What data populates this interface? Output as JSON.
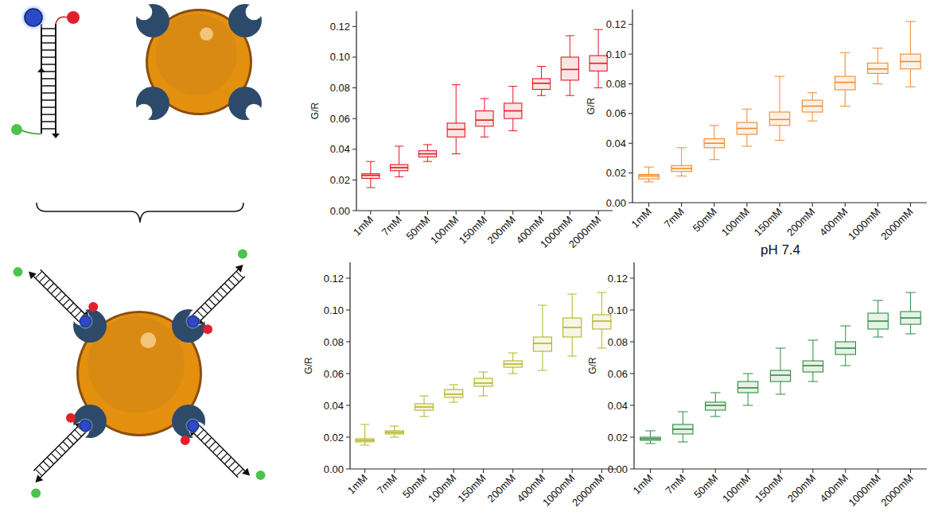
{
  "chart_data": [
    {
      "type": "box",
      "ylabel": "G/R",
      "color": "#e3171f",
      "grid": false,
      "categories": [
        "1mM",
        "7mM",
        "50mM",
        "100mM",
        "150mM",
        "200mM",
        "400mM",
        "1000mM",
        "2000mM"
      ],
      "min": [
        0.015,
        0.022,
        0.032,
        0.037,
        0.048,
        0.052,
        0.075,
        0.075,
        0.08
      ],
      "q1": [
        0.021,
        0.026,
        0.035,
        0.048,
        0.055,
        0.06,
        0.079,
        0.085,
        0.091
      ],
      "median": [
        0.023,
        0.028,
        0.037,
        0.053,
        0.059,
        0.065,
        0.083,
        0.092,
        0.096
      ],
      "q3": [
        0.024,
        0.03,
        0.039,
        0.057,
        0.065,
        0.07,
        0.086,
        0.1,
        0.101
      ],
      "max": [
        0.032,
        0.042,
        0.043,
        0.082,
        0.073,
        0.081,
        0.094,
        0.114,
        0.118
      ],
      "ylim": [
        0,
        0.13
      ],
      "yticks": [
        {
          "value": 0,
          "label": "0.00"
        },
        {
          "value": 0.02,
          "label": "0.02"
        },
        {
          "value": 0.04,
          "label": "0.04"
        },
        {
          "value": 0.06,
          "label": "0.06"
        },
        {
          "value": 0.08,
          "label": "0.08"
        },
        {
          "value": 0.1,
          "label": "0.10"
        },
        {
          "value": 0.12,
          "label": "0.12"
        }
      ]
    },
    {
      "type": "box",
      "ylabel": "G/R",
      "color": "#f08a2c",
      "grid": false,
      "categories": [
        "1mM",
        "7mM",
        "50mM",
        "100mM",
        "150mM",
        "200mM",
        "400mM",
        "1000mM",
        "2000mM"
      ],
      "min": [
        0.014,
        0.018,
        0.029,
        0.038,
        0.042,
        0.055,
        0.065,
        0.08,
        0.078
      ],
      "q1": [
        0.016,
        0.021,
        0.037,
        0.046,
        0.052,
        0.061,
        0.076,
        0.087,
        0.09
      ],
      "median": [
        0.018,
        0.023,
        0.04,
        0.05,
        0.056,
        0.065,
        0.081,
        0.09,
        0.095
      ],
      "q3": [
        0.019,
        0.025,
        0.043,
        0.054,
        0.061,
        0.069,
        0.085,
        0.094,
        0.1
      ],
      "max": [
        0.024,
        0.037,
        0.052,
        0.063,
        0.085,
        0.074,
        0.101,
        0.104,
        0.122
      ],
      "ylim": [
        0,
        0.13
      ],
      "yticks": [
        {
          "value": 0,
          "label": "0.00"
        },
        {
          "value": 0.02,
          "label": "0.02"
        },
        {
          "value": 0.04,
          "label": "0.04"
        },
        {
          "value": 0.06,
          "label": "0.06"
        },
        {
          "value": 0.08,
          "label": "0.08"
        },
        {
          "value": 0.1,
          "label": "0.10"
        },
        {
          "value": 0.12,
          "label": "0.12"
        }
      ]
    },
    {
      "type": "box",
      "ylabel": "G/R",
      "color": "#b3b520",
      "grid": false,
      "categories": [
        "1mM",
        "7mM",
        "50mM",
        "100mM",
        "150mM",
        "200mM",
        "400mM",
        "1000mM",
        "2000mM"
      ],
      "min": [
        0.015,
        0.02,
        0.033,
        0.042,
        0.046,
        0.06,
        0.062,
        0.071,
        0.076
      ],
      "q1": [
        0.017,
        0.022,
        0.037,
        0.045,
        0.052,
        0.064,
        0.074,
        0.083,
        0.088
      ],
      "median": [
        0.018,
        0.023,
        0.039,
        0.047,
        0.054,
        0.066,
        0.079,
        0.089,
        0.093
      ],
      "q3": [
        0.019,
        0.024,
        0.041,
        0.05,
        0.057,
        0.068,
        0.083,
        0.095,
        0.097
      ],
      "max": [
        0.028,
        0.027,
        0.046,
        0.053,
        0.061,
        0.073,
        0.103,
        0.11,
        0.111
      ],
      "ylim": [
        0,
        0.13
      ],
      "yticks": [
        {
          "value": 0,
          "label": "0.00"
        },
        {
          "value": 0.02,
          "label": "0.02"
        },
        {
          "value": 0.04,
          "label": "0.04"
        },
        {
          "value": 0.06,
          "label": "0.06"
        },
        {
          "value": 0.08,
          "label": "0.08"
        },
        {
          "value": 0.1,
          "label": "0.10"
        },
        {
          "value": 0.12,
          "label": "0.12"
        }
      ]
    },
    {
      "type": "box",
      "title": "pH 7.4",
      "ylabel": "G/R",
      "color": "#2e8b3f",
      "grid": false,
      "categories": [
        "1mM",
        "7mM",
        "50mM",
        "100mM",
        "150mM",
        "200mM",
        "400mM",
        "1000mM",
        "2000mM"
      ],
      "min": [
        0.016,
        0.017,
        0.033,
        0.04,
        0.047,
        0.055,
        0.065,
        0.083,
        0.085
      ],
      "q1": [
        0.018,
        0.022,
        0.037,
        0.048,
        0.055,
        0.061,
        0.072,
        0.088,
        0.091
      ],
      "median": [
        0.019,
        0.025,
        0.04,
        0.051,
        0.059,
        0.065,
        0.076,
        0.093,
        0.095
      ],
      "q3": [
        0.02,
        0.028,
        0.042,
        0.055,
        0.062,
        0.068,
        0.08,
        0.098,
        0.099
      ],
      "max": [
        0.024,
        0.036,
        0.048,
        0.06,
        0.076,
        0.081,
        0.09,
        0.106,
        0.111
      ],
      "ylim": [
        0,
        0.13
      ],
      "yticks": [
        {
          "value": 0,
          "label": "0.00"
        },
        {
          "value": 0.02,
          "label": "0.02"
        },
        {
          "value": 0.04,
          "label": "0.04"
        },
        {
          "value": 0.06,
          "label": "0.06"
        },
        {
          "value": 0.08,
          "label": "0.08"
        },
        {
          "value": 0.1,
          "label": "0.10"
        },
        {
          "value": 0.12,
          "label": "0.12"
        }
      ]
    }
  ]
}
